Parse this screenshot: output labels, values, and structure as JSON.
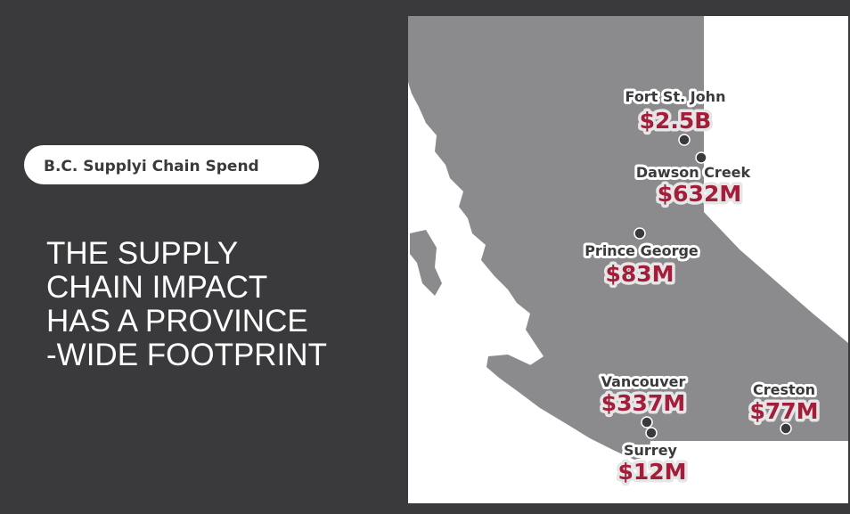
{
  "label": "B.C. Supplyi Chain Spend",
  "headline": [
    "THE SUPPLY",
    "CHAIN IMPACT",
    "HAS A PROVINCE",
    "-WIDE FOOTPRINT"
  ],
  "cities": [
    {
      "name": "Fort St. John",
      "value": "$2.5B"
    },
    {
      "name": "Dawson Creek",
      "value": "$632M"
    },
    {
      "name": "Prince George",
      "value": "$83M"
    },
    {
      "name": "Vancouver",
      "value": "$337M"
    },
    {
      "name": "Surrey",
      "value": "$12M"
    },
    {
      "name": "Creston",
      "value": "$77M"
    }
  ]
}
